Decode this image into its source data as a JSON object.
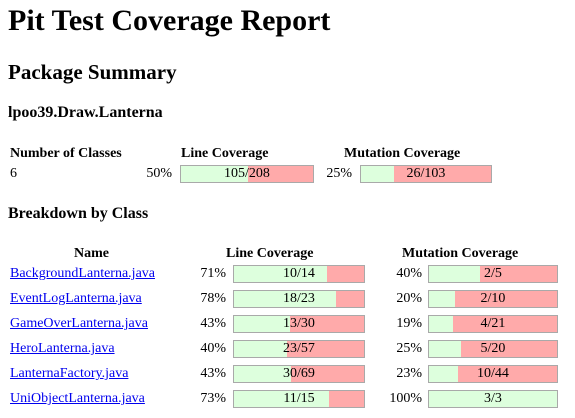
{
  "title": "Pit Test Coverage Report",
  "package_summary_heading": "Package Summary",
  "package_name": "lpoo39.Draw.Lanterna",
  "summary": {
    "headers": {
      "classes": "Number of Classes",
      "line": "Line Coverage",
      "mutation": "Mutation Coverage"
    },
    "classes": "6",
    "line_pct": "50%",
    "line_label": "105/208",
    "line_fraction": 0.505,
    "mutation_pct": "25%",
    "mutation_label": "26/103",
    "mutation_fraction": 0.252
  },
  "breakdown_heading": "Breakdown by Class",
  "breakdown": {
    "headers": {
      "name": "Name",
      "line": "Line Coverage",
      "mutation": "Mutation Coverage"
    },
    "rows": [
      {
        "name": "BackgroundLanterna.java",
        "line_pct": "71%",
        "line_label": "10/14",
        "line_fraction": 0.714,
        "mut_pct": "40%",
        "mut_label": "2/5",
        "mut_fraction": 0.4
      },
      {
        "name": "EventLogLanterna.java",
        "line_pct": "78%",
        "line_label": "18/23",
        "line_fraction": 0.783,
        "mut_pct": "20%",
        "mut_label": "2/10",
        "mut_fraction": 0.2
      },
      {
        "name": "GameOverLanterna.java",
        "line_pct": "43%",
        "line_label": "13/30",
        "line_fraction": 0.433,
        "mut_pct": "19%",
        "mut_label": "4/21",
        "mut_fraction": 0.19
      },
      {
        "name": "HeroLanterna.java",
        "line_pct": "40%",
        "line_label": "23/57",
        "line_fraction": 0.404,
        "mut_pct": "25%",
        "mut_label": "5/20",
        "mut_fraction": 0.25
      },
      {
        "name": "LanternaFactory.java",
        "line_pct": "43%",
        "line_label": "30/69",
        "line_fraction": 0.435,
        "mut_pct": "23%",
        "mut_label": "10/44",
        "mut_fraction": 0.227
      },
      {
        "name": "UniObjectLanterna.java",
        "line_pct": "73%",
        "line_label": "11/15",
        "line_fraction": 0.733,
        "mut_pct": "100%",
        "mut_label": "3/3",
        "mut_fraction": 1.0
      }
    ]
  }
}
